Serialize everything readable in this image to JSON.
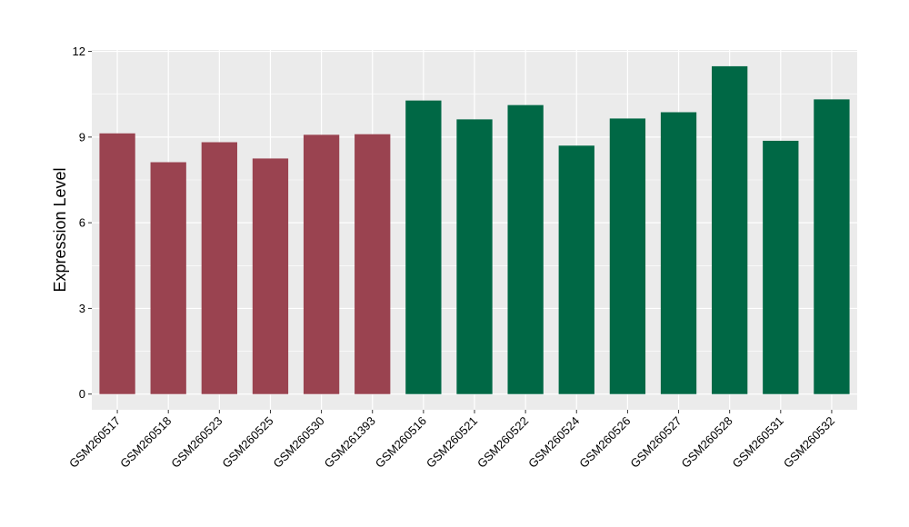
{
  "chart_data": {
    "type": "bar",
    "ylabel": "Expression Level",
    "xlabel": "",
    "ylim": [
      -0.55,
      12.05
    ],
    "yticks": [
      0,
      3,
      6,
      9,
      12
    ],
    "grid": true,
    "colors": {
      "group1": "#9a4350",
      "group2": "#006845",
      "panel": "#ebebeb",
      "grid": "#ffffff"
    },
    "categories": [
      "GSM260517",
      "GSM260518",
      "GSM260523",
      "GSM260525",
      "GSM260530",
      "GSM261393",
      "GSM260516",
      "GSM260521",
      "GSM260522",
      "GSM260524",
      "GSM260526",
      "GSM260527",
      "GSM260528",
      "GSM260531",
      "GSM260532"
    ],
    "values": [
      9.13,
      8.12,
      8.82,
      8.25,
      9.08,
      9.1,
      10.28,
      9.62,
      10.12,
      8.7,
      9.65,
      9.87,
      11.48,
      8.87,
      10.32
    ],
    "groups": [
      1,
      1,
      1,
      1,
      1,
      1,
      2,
      2,
      2,
      2,
      2,
      2,
      2,
      2,
      2
    ]
  }
}
